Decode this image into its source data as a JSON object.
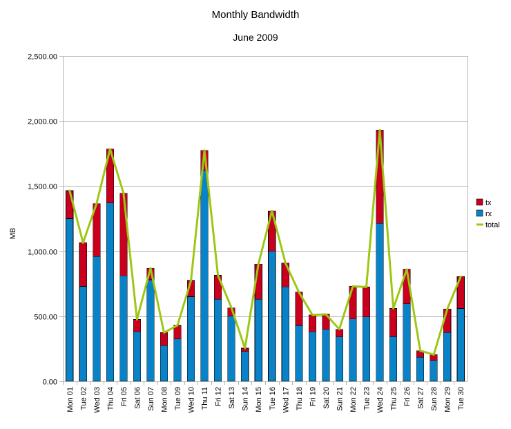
{
  "chart_data": {
    "type": "bar",
    "stacked": true,
    "title": "Monthly Bandwidth",
    "subtitle": "June 2009",
    "ylabel": "MB",
    "ylim": [
      0,
      2500
    ],
    "yticks": [
      "0.00",
      "500.00",
      "1,000.00",
      "1,500.00",
      "2,000.00",
      "2,500.00"
    ],
    "ytick_values": [
      0,
      500,
      1000,
      1500,
      2000,
      2500
    ],
    "grid": true,
    "legend_position": "right",
    "categories": [
      "Mon 01",
      "Tue 02",
      "Wed 03",
      "Thu 04",
      "Fri 05",
      "Sat 06",
      "Sun 07",
      "Mon 08",
      "Tue 09",
      "Wed 10",
      "Thu 11",
      "Fri 12",
      "Sat 13",
      "Sun 14",
      "Mon 15",
      "Tue 16",
      "Wed 17",
      "Thu 18",
      "Fri 19",
      "Sat 20",
      "Sun 21",
      "Mon 22",
      "Tue 23",
      "Wed 24",
      "Thu 25",
      "Fri 26",
      "Sat 27",
      "Sun 28",
      "Mon 29",
      "Tue 30"
    ],
    "series": [
      {
        "name": "rx",
        "color": "#0a82c8",
        "kind": "bar",
        "values": [
          1250,
          730,
          960,
          1370,
          810,
          380,
          780,
          275,
          325,
          650,
          1620,
          630,
          500,
          230,
          630,
          1000,
          725,
          430,
          380,
          400,
          340,
          480,
          495,
          1215,
          345,
          595,
          185,
          160,
          375,
          560
        ]
      },
      {
        "name": "tx",
        "color": "#c8001e",
        "kind": "bar",
        "values": [
          215,
          335,
          405,
          415,
          635,
          95,
          90,
          100,
          105,
          125,
          155,
          185,
          65,
          25,
          270,
          310,
          185,
          255,
          130,
          115,
          60,
          250,
          230,
          715,
          215,
          265,
          50,
          45,
          180,
          245
        ]
      },
      {
        "name": "total",
        "color": "#9dc714",
        "kind": "line",
        "values": [
          1465,
          1065,
          1365,
          1785,
          1445,
          475,
          870,
          375,
          430,
          775,
          1775,
          815,
          565,
          255,
          900,
          1310,
          910,
          685,
          510,
          515,
          400,
          730,
          725,
          1930,
          560,
          860,
          235,
          205,
          555,
          805
        ]
      }
    ],
    "legend": [
      "tx",
      "rx",
      "total"
    ]
  }
}
